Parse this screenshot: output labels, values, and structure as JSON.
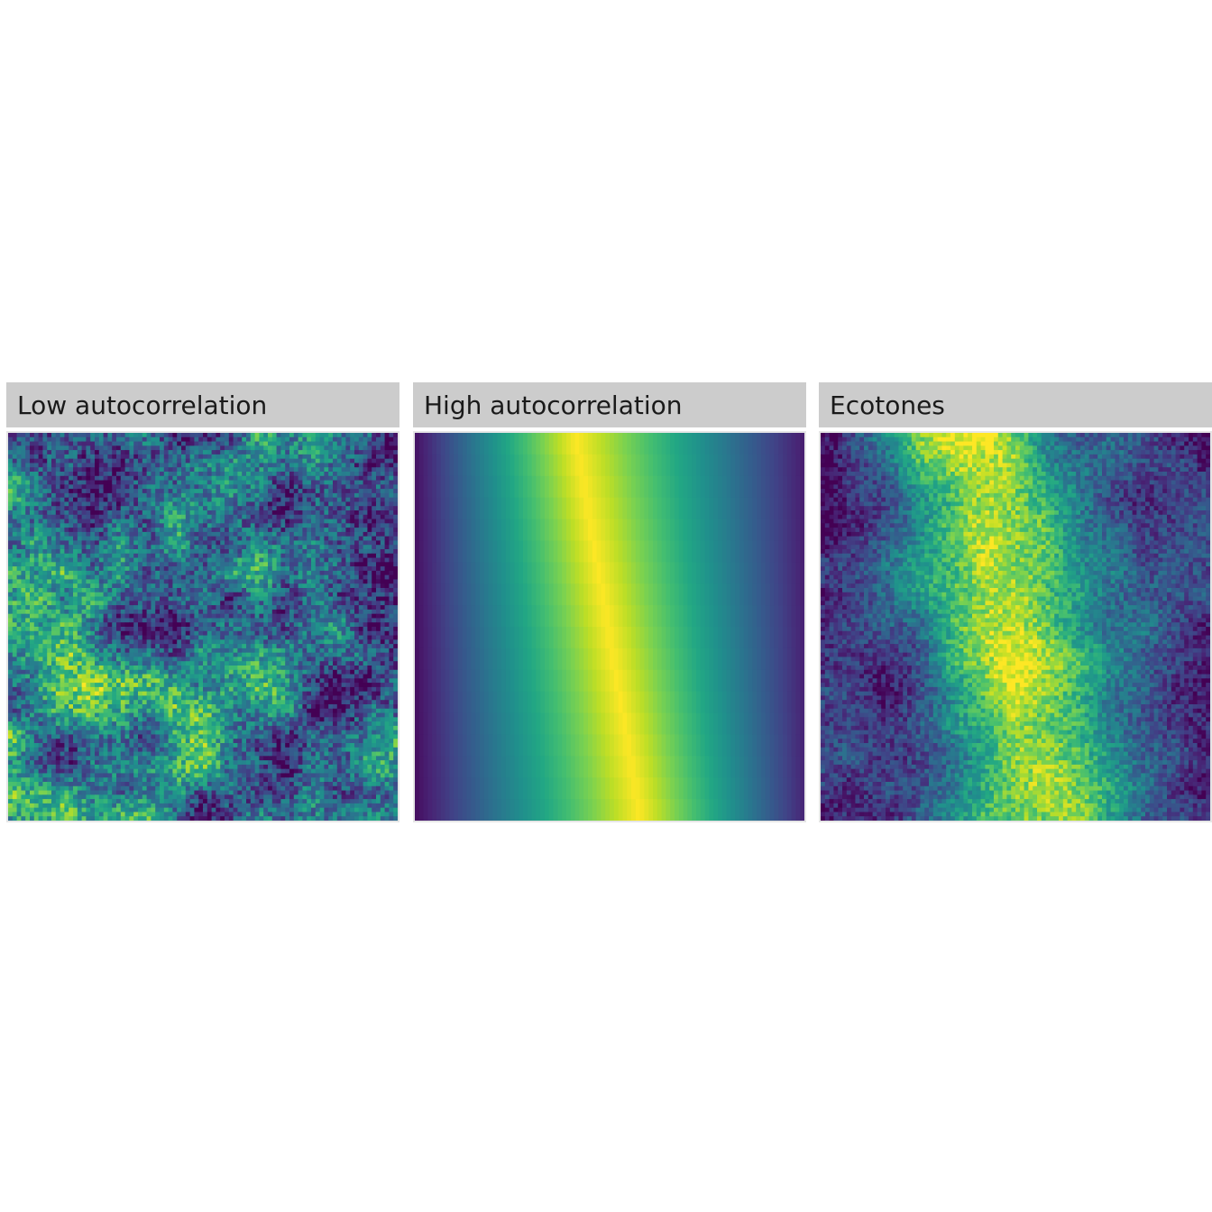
{
  "chart_data": [
    {
      "type": "heatmap",
      "title": "Low autocorrelation",
      "colorscale": "viridis",
      "grid": false,
      "pattern": "noisy random field, weak spatial autocorrelation",
      "colors": {
        "low": "#440154",
        "mid": "#21908C",
        "high": "#FDE725"
      }
    },
    {
      "type": "heatmap",
      "title": "High autocorrelation",
      "colorscale": "viridis",
      "grid": false,
      "pattern": "smooth diagonal gradient band, yellow ridge near center tilted to the right toward bottom",
      "colors": {
        "low": "#440154",
        "mid": "#21908C",
        "high": "#FDE725"
      }
    },
    {
      "type": "heatmap",
      "title": "Ecotones",
      "colorscale": "viridis",
      "grid": false,
      "pattern": "noisy field with broad yellow-green ridge running diagonally through the center",
      "colors": {
        "low": "#440154",
        "mid": "#21908C",
        "high": "#FDE725"
      }
    }
  ]
}
